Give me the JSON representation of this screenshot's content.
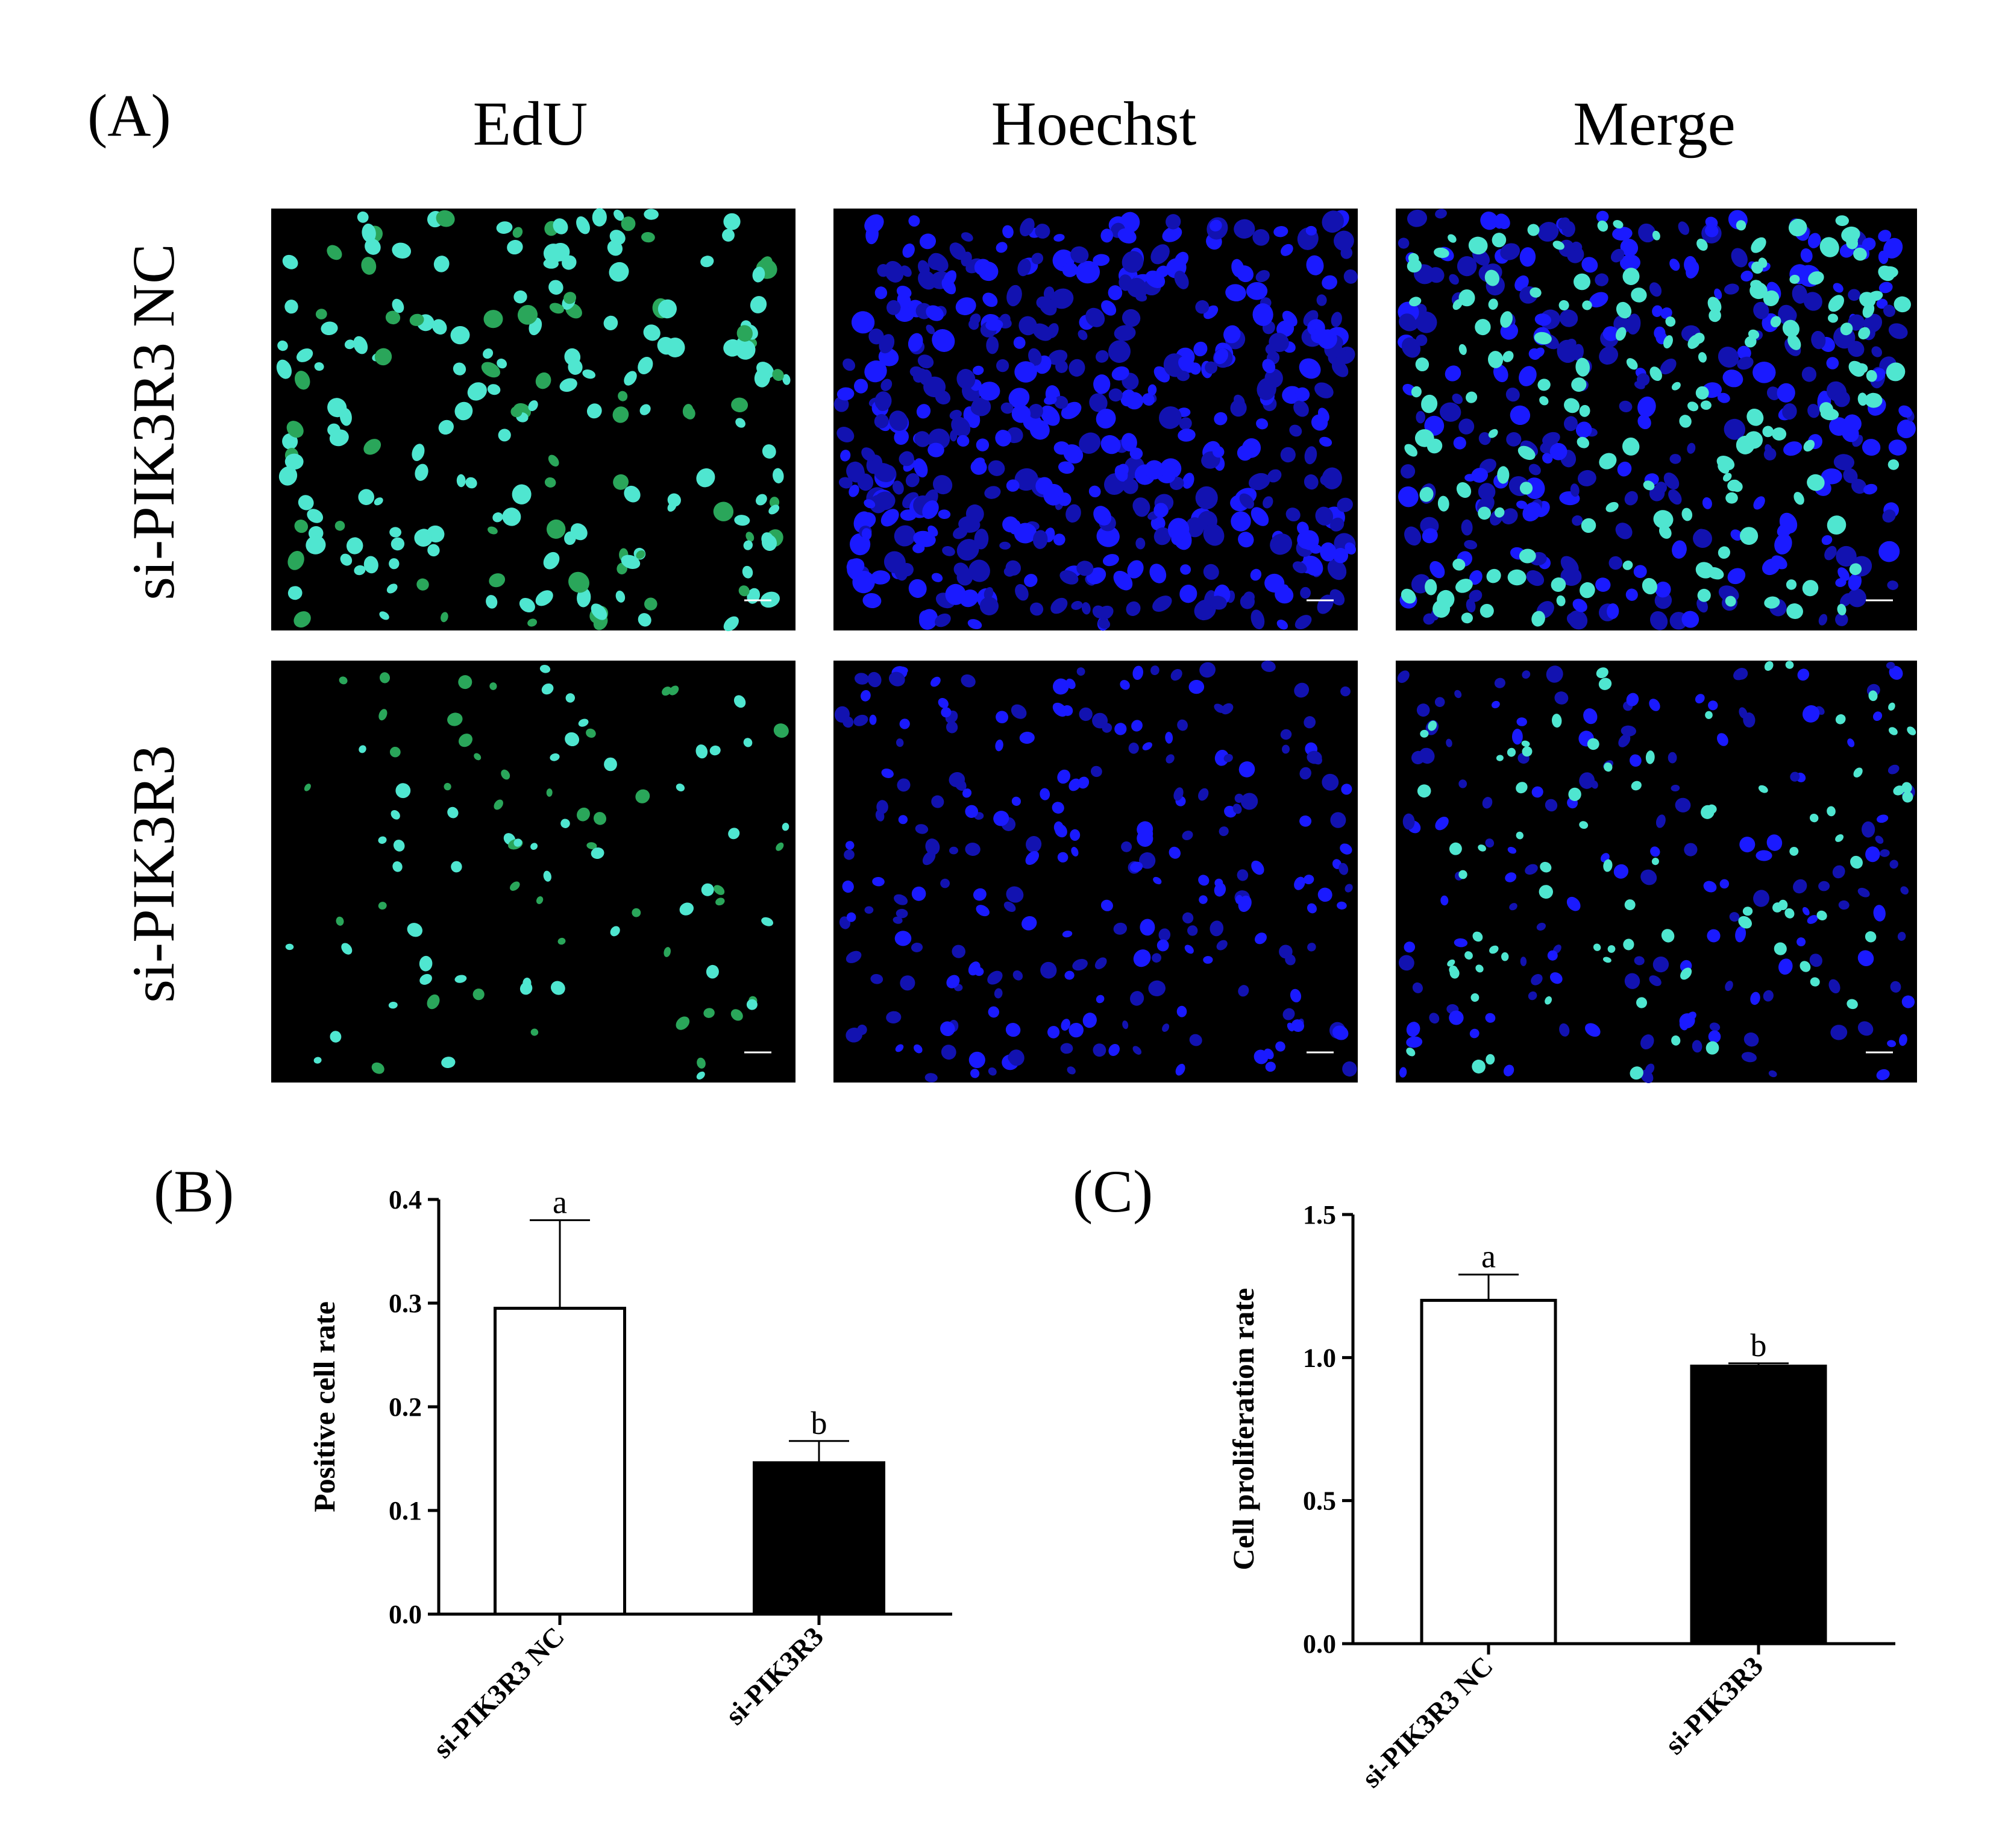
{
  "panel_a": {
    "label": "(A)",
    "columns": [
      "EdU",
      "Hoechst",
      "Merge"
    ],
    "rows": [
      "si-PIK3R3 NC",
      "si-PIK3R3"
    ]
  },
  "panel_b": {
    "label": "(B)"
  },
  "panel_c": {
    "label": "(C)"
  },
  "colors": {
    "edu_high": "#4fe6d0",
    "edu_low": "#2aa65a",
    "hoechst_high": "#1a1aff",
    "hoechst_low": "#1212b0",
    "bar_nc": "#ffffff",
    "bar_si": "#000000"
  },
  "chart_data": [
    {
      "type": "bar",
      "panel": "B",
      "categories": [
        "si-PIK3R3 NC",
        "si-PIK3R3"
      ],
      "values": [
        0.295,
        0.146
      ],
      "errors": [
        0.085,
        0.021
      ],
      "significance": [
        "a",
        "b"
      ],
      "ylabel": "Positive cell rate",
      "xlabel": "",
      "ylim": [
        0.0,
        0.4
      ],
      "yticks": [
        "0.0",
        "0.1",
        "0.2",
        "0.3",
        "0.4"
      ],
      "bar_fills": [
        "white",
        "black"
      ]
    },
    {
      "type": "bar",
      "panel": "C",
      "categories": [
        "si-PIK3R3 NC",
        "si-PIK3R3"
      ],
      "values": [
        1.2,
        0.97
      ],
      "errors": [
        0.09,
        0.01
      ],
      "significance": [
        "a",
        "b"
      ],
      "ylabel": "Cell proliferation rate",
      "xlabel": "",
      "ylim": [
        0.0,
        1.5
      ],
      "yticks": [
        "0.0",
        "0.5",
        "1.0",
        "1.5"
      ],
      "bar_fills": [
        "white",
        "black"
      ]
    }
  ]
}
